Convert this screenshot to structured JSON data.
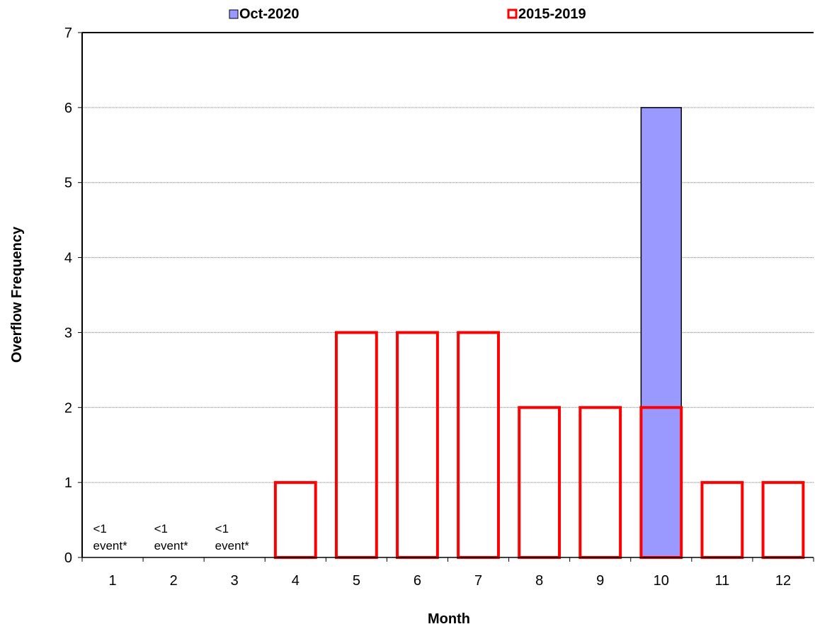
{
  "chart_data": {
    "type": "bar",
    "xlabel": "Month",
    "ylabel": "Overflow Frequency",
    "ylim": [
      0,
      7
    ],
    "yticks": [
      0,
      1,
      2,
      3,
      4,
      5,
      6,
      7
    ],
    "grid": true,
    "legend_position": "top",
    "categories": [
      "1",
      "2",
      "3",
      "4",
      "5",
      "6",
      "7",
      "8",
      "9",
      "10",
      "11",
      "12"
    ],
    "series": [
      {
        "name": "Oct-2020",
        "style": "filled",
        "fill_color": "#9999ff",
        "stroke_color": "#000000",
        "values": [
          null,
          null,
          null,
          null,
          null,
          null,
          null,
          null,
          null,
          6,
          null,
          null
        ]
      },
      {
        "name": "2015-2019",
        "style": "outline",
        "stroke_color": "#ff0000",
        "values": [
          0,
          0,
          0,
          1,
          3,
          3,
          3,
          2,
          2,
          2,
          1,
          1
        ]
      }
    ],
    "annotations": [
      {
        "category": "1",
        "lines": [
          "<1",
          "event*"
        ]
      },
      {
        "category": "2",
        "lines": [
          "<1",
          "event*"
        ]
      },
      {
        "category": "3",
        "lines": [
          "<1",
          "event*"
        ]
      }
    ]
  }
}
